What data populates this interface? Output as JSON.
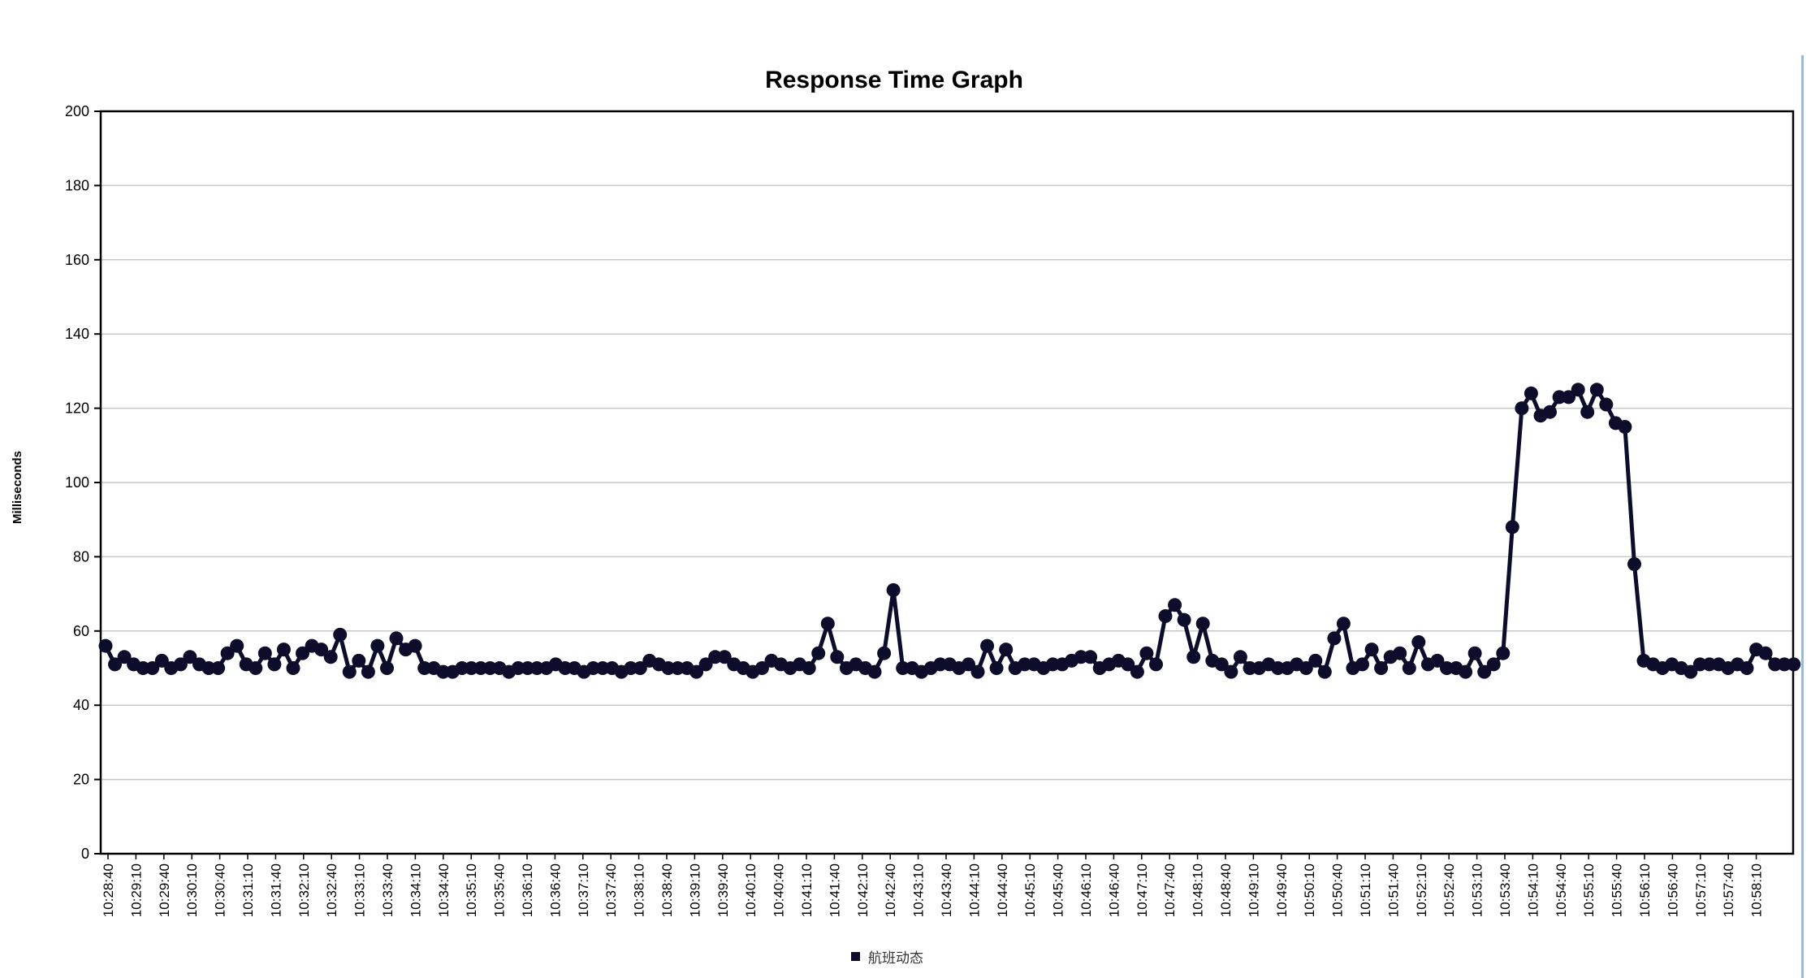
{
  "colors": {
    "series": "#0d0d2b",
    "grid": "#c8c8c8",
    "axis": "#000000",
    "text": "#000000",
    "window_edge": "#9fb8d8"
  },
  "chart_data": {
    "type": "line",
    "title": "Response Time Graph",
    "xlabel": "",
    "ylabel": "Milliseconds",
    "ylim": [
      0,
      200
    ],
    "yticks": [
      0,
      20,
      40,
      60,
      80,
      100,
      120,
      140,
      160,
      180,
      200
    ],
    "grid": true,
    "legend_position": "bottom",
    "markers": true,
    "x_tick_labels": [
      "10:28:40",
      "10:29:10",
      "10:29:40",
      "10:30:10",
      "10:30:40",
      "10:31:10",
      "10:31:40",
      "10:32:10",
      "10:32:40",
      "10:33:10",
      "10:33:40",
      "10:34:10",
      "10:34:40",
      "10:35:10",
      "10:35:40",
      "10:36:10",
      "10:36:40",
      "10:37:10",
      "10:37:40",
      "10:38:10",
      "10:38:40",
      "10:39:10",
      "10:39:40",
      "10:40:10",
      "10:40:40",
      "10:41:10",
      "10:41:40",
      "10:42:10",
      "10:42:40",
      "10:43:10",
      "10:43:40",
      "10:44:10",
      "10:44:40",
      "10:45:10",
      "10:45:40",
      "10:46:10",
      "10:46:40",
      "10:47:10",
      "10:47:40",
      "10:48:10",
      "10:48:40",
      "10:49:10",
      "10:49:40",
      "10:50:10",
      "10:50:40",
      "10:51:10",
      "10:51:40",
      "10:52:10",
      "10:52:40",
      "10:53:10",
      "10:53:40",
      "10:54:10",
      "10:54:40",
      "10:55:10",
      "10:55:40",
      "10:56:10",
      "10:56:40",
      "10:57:10",
      "10:57:40",
      "10:58:10"
    ],
    "series": [
      {
        "name": "航班动态",
        "values": [
          56,
          51,
          53,
          51,
          50,
          50,
          52,
          50,
          51,
          53,
          51,
          50,
          50,
          54,
          56,
          51,
          50,
          54,
          51,
          55,
          50,
          54,
          56,
          55,
          53,
          59,
          49,
          52,
          49,
          56,
          50,
          58,
          55,
          56,
          50,
          50,
          49,
          49,
          50,
          50,
          50,
          50,
          50,
          49,
          50,
          50,
          50,
          50,
          51,
          50,
          50,
          49,
          50,
          50,
          50,
          49,
          50,
          50,
          52,
          51,
          50,
          50,
          50,
          49,
          51,
          53,
          53,
          51,
          50,
          49,
          50,
          52,
          51,
          50,
          51,
          50,
          54,
          62,
          53,
          50,
          51,
          50,
          49,
          54,
          71,
          50,
          50,
          49,
          50,
          51,
          51,
          50,
          51,
          49,
          56,
          50,
          55,
          50,
          51,
          51,
          50,
          51,
          51,
          52,
          53,
          53,
          50,
          51,
          52,
          51,
          49,
          54,
          51,
          64,
          67,
          63,
          53,
          62,
          52,
          51,
          49,
          53,
          50,
          50,
          51,
          50,
          50,
          51,
          50,
          52,
          49,
          58,
          62,
          50,
          51,
          55,
          50,
          53,
          54,
          50,
          57,
          51,
          52,
          50,
          50,
          49,
          54,
          49,
          51,
          54,
          88,
          120,
          124,
          118,
          119,
          123,
          123,
          125,
          119,
          125,
          121,
          116,
          115,
          78,
          52,
          51,
          50,
          51,
          50,
          49,
          51,
          51,
          51,
          50,
          51,
          50,
          55,
          54,
          51,
          51,
          51
        ]
      }
    ]
  }
}
